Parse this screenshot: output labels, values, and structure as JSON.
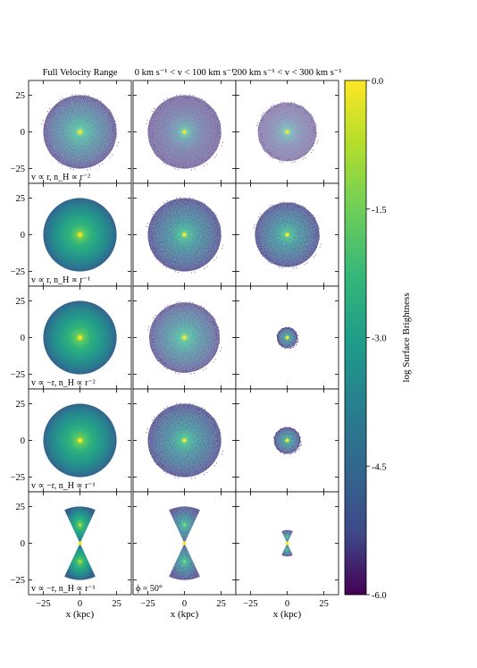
{
  "chart_data": {
    "type": "heatmap",
    "column_titles": [
      "Full Velocity Range",
      "0 km s⁻¹ < v < 100 km s⁻¹",
      "200 km s⁻¹ < v < 300 km s⁻¹"
    ],
    "row_labels": [
      "v ∝ r, n_H ∝ r⁻²",
      "v ∝ r, n_H ∝ r⁻¹",
      "v ∝ −r, n_H ∝ r⁻²",
      "v ∝ −r, n_H ∝ r⁻¹",
      "v ∝ −r, n_H ∝ r⁻¹"
    ],
    "extra_annotation": "ϕ = 50°",
    "xlabel": "x (kpc)",
    "xlim": [
      -35,
      35
    ],
    "ylim": [
      -35,
      35
    ],
    "xticks": [
      -25,
      0,
      25
    ],
    "yticks": [
      -25,
      0,
      25
    ],
    "xtick_labels": [
      "−25",
      "0",
      "25"
    ],
    "ytick_labels": [
      "25",
      "0",
      "−25"
    ],
    "colorbar": {
      "label": "log Surface Brightness",
      "min": -6.0,
      "max": 0.0,
      "ticks": [
        0.0,
        -1.5,
        -3.0,
        -4.5,
        -6.0
      ],
      "tick_labels": [
        "0.0",
        "-1.5",
        "-3.0",
        "-4.5",
        "-6.0"
      ],
      "colormap": "viridis"
    },
    "panels": [
      [
        {
          "shape": "disk",
          "radius_kpc": 25,
          "density": "speckled-medium"
        },
        {
          "shape": "disk",
          "radius_kpc": 25,
          "density": "speckled-sparse"
        },
        {
          "shape": "disk",
          "radius_kpc": 20,
          "density": "speckled-very-sparse"
        }
      ],
      [
        {
          "shape": "disk",
          "radius_kpc": 25,
          "density": "smooth"
        },
        {
          "shape": "disk",
          "radius_kpc": 25,
          "density": "speckled-dense"
        },
        {
          "shape": "disk",
          "radius_kpc": 22,
          "density": "speckled-dense"
        }
      ],
      [
        {
          "shape": "disk",
          "radius_kpc": 25,
          "density": "smooth"
        },
        {
          "shape": "disk",
          "radius_kpc": 24,
          "density": "speckled-medium"
        },
        {
          "shape": "disk",
          "radius_kpc": 7,
          "density": "speckled-dense"
        }
      ],
      [
        {
          "shape": "disk",
          "radius_kpc": 25,
          "density": "smooth"
        },
        {
          "shape": "disk",
          "radius_kpc": 25,
          "density": "speckled-dense"
        },
        {
          "shape": "disk",
          "radius_kpc": 9,
          "density": "speckled-dense"
        }
      ],
      [
        {
          "shape": "cone",
          "radius_kpc": 25,
          "opening_angle_deg": 50,
          "density": "smooth"
        },
        {
          "shape": "cone",
          "radius_kpc": 25,
          "opening_angle_deg": 50,
          "density": "speckled-dense"
        },
        {
          "shape": "cone",
          "radius_kpc": 9,
          "opening_angle_deg": 50,
          "density": "speckled-dense"
        }
      ]
    ]
  }
}
